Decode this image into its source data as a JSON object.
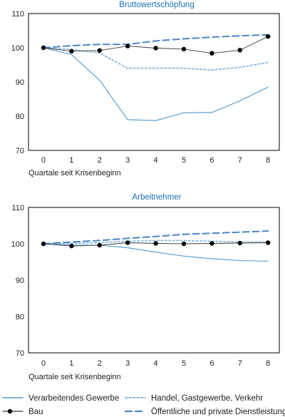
{
  "chart_data": [
    {
      "type": "line",
      "title": "Bruttowertschöpfung",
      "xlabel": "Quartale seit Krisenbeginn",
      "ylabel": "",
      "x": [
        0,
        1,
        2,
        3,
        4,
        5,
        6,
        7,
        8
      ],
      "ylim": [
        70,
        110
      ],
      "yticks": [
        70,
        80,
        90,
        100,
        110
      ],
      "grid": false,
      "series": [
        {
          "name": "Verarbeitendes Gewerbe",
          "values": [
            100,
            98,
            90.5,
            79,
            78.7,
            81,
            81.1,
            84.5,
            88.5
          ]
        },
        {
          "name": "Handel, Gastgewerbe, Verkehr",
          "values": [
            100,
            99.5,
            98.5,
            94,
            94,
            94,
            93.5,
            94.3,
            95.7
          ]
        },
        {
          "name": "Bau",
          "values": [
            100,
            99,
            99.2,
            100.5,
            99.9,
            99.6,
            98.4,
            99.3,
            103.3
          ]
        },
        {
          "name": "Öffentliche und private Dienstleistung",
          "values": [
            100,
            100.6,
            101,
            101,
            102,
            102.6,
            103.1,
            103.5,
            103.8
          ]
        }
      ]
    },
    {
      "type": "line",
      "title": "Arbeitnehmer",
      "xlabel": "Quartale seit Krisenbeginn",
      "ylabel": "",
      "x": [
        0,
        1,
        2,
        3,
        4,
        5,
        6,
        7,
        8
      ],
      "ylim": [
        70,
        110
      ],
      "yticks": [
        70,
        80,
        90,
        100,
        110
      ],
      "grid": false,
      "series": [
        {
          "name": "Verarbeitendes Gewerbe",
          "values": [
            100,
            99.6,
            99.6,
            98.9,
            97.7,
            96.6,
            95.9,
            95.4,
            95.2
          ]
        },
        {
          "name": "Handel, Gastgewerbe, Verkehr",
          "values": [
            100,
            100.1,
            100.3,
            100.7,
            100.9,
            100.9,
            100.7,
            100.5,
            100.5
          ]
        },
        {
          "name": "Bau",
          "values": [
            100,
            99.4,
            99.6,
            100.3,
            100.1,
            100,
            100.1,
            100.2,
            100.3
          ]
        },
        {
          "name": "Öffentliche und private Dienstleistung",
          "values": [
            100,
            100.5,
            100.9,
            101.5,
            102,
            102.6,
            102.9,
            103.2,
            103.5
          ]
        }
      ]
    }
  ],
  "legend": {
    "placement": "bottom",
    "items": [
      {
        "name": "Verarbeitendes Gewerbe",
        "color": "#4f97d0",
        "style": "solid"
      },
      {
        "name": "Handel, Gastgewerbe, Verkehr",
        "color": "#8ab7e1",
        "style": "dotted"
      },
      {
        "name": "Bau",
        "color": "#000000",
        "style": "solid-markers"
      },
      {
        "name": "Öffentliche und private Dienstleistung",
        "color": "#4a86c5",
        "style": "dashed"
      }
    ]
  }
}
